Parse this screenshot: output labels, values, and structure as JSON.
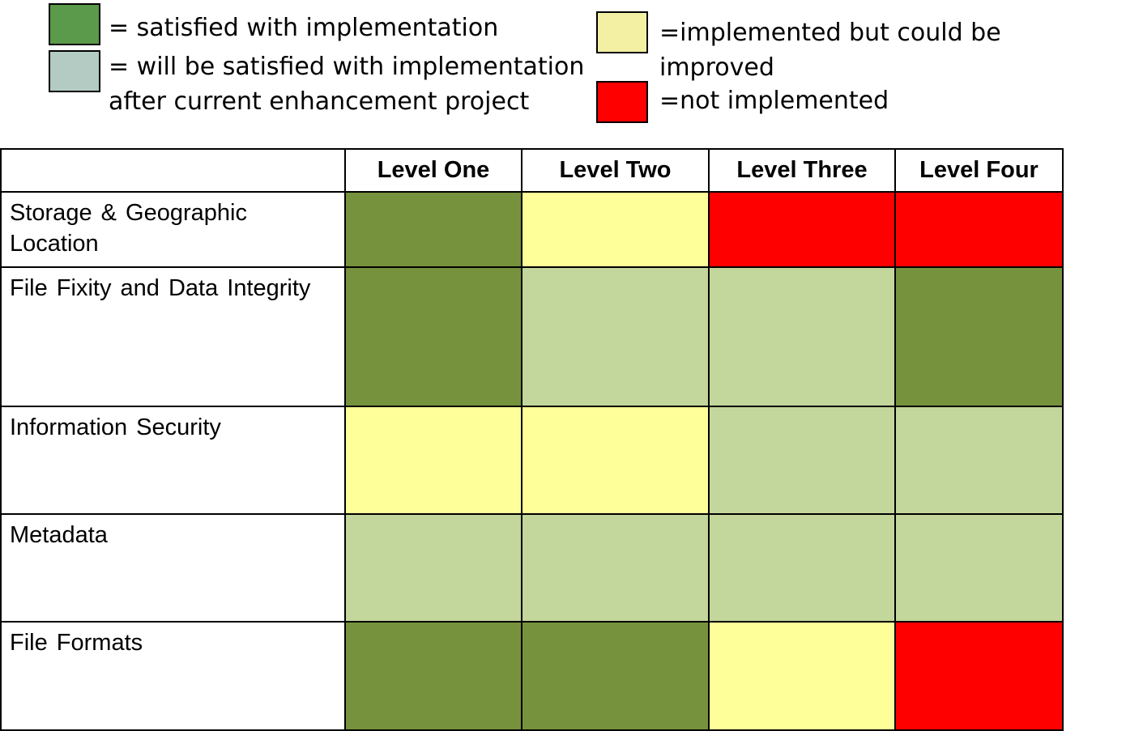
{
  "colors": {
    "satisfied": "#77923c",
    "will_be_satisfied": "#c3d69b",
    "could_be_improved": "#ffff99",
    "not_implemented": "#ff0000",
    "legend_satisfied": "#5a9a4a",
    "legend_will_be_satisfied": "#b3cbc3",
    "legend_could_be_improved": "#f3f0a3",
    "legend_not_implemented": "#ff0000"
  },
  "legend": {
    "satisfied": "= satisfied with implementation",
    "will_be_satisfied_line1": "= will be satisfied with implementation",
    "will_be_satisfied_line2": "after current enhancement project",
    "could_be_improved_line1": "=implemented but could be",
    "could_be_improved_line2": "improved",
    "not_implemented": "=not implemented"
  },
  "chart_data": {
    "type": "heatmap",
    "title": "",
    "columns": [
      "Level One",
      "Level Two",
      "Level Three",
      "Level Four"
    ],
    "rows": [
      {
        "label": "Storage & Geographic Location",
        "status": [
          "satisfied",
          "could_be_improved",
          "not_implemented",
          "not_implemented"
        ]
      },
      {
        "label": "File Fixity and Data Integrity",
        "status": [
          "satisfied",
          "will_be_satisfied",
          "will_be_satisfied",
          "satisfied"
        ]
      },
      {
        "label": "Information Security",
        "status": [
          "could_be_improved",
          "could_be_improved",
          "will_be_satisfied",
          "will_be_satisfied"
        ]
      },
      {
        "label": "Metadata",
        "status": [
          "will_be_satisfied",
          "will_be_satisfied",
          "will_be_satisfied",
          "will_be_satisfied"
        ]
      },
      {
        "label": "File Formats",
        "status": [
          "satisfied",
          "satisfied",
          "could_be_improved",
          "not_implemented"
        ]
      }
    ],
    "categories_legend": [
      "satisfied",
      "will_be_satisfied",
      "could_be_improved",
      "not_implemented"
    ]
  }
}
